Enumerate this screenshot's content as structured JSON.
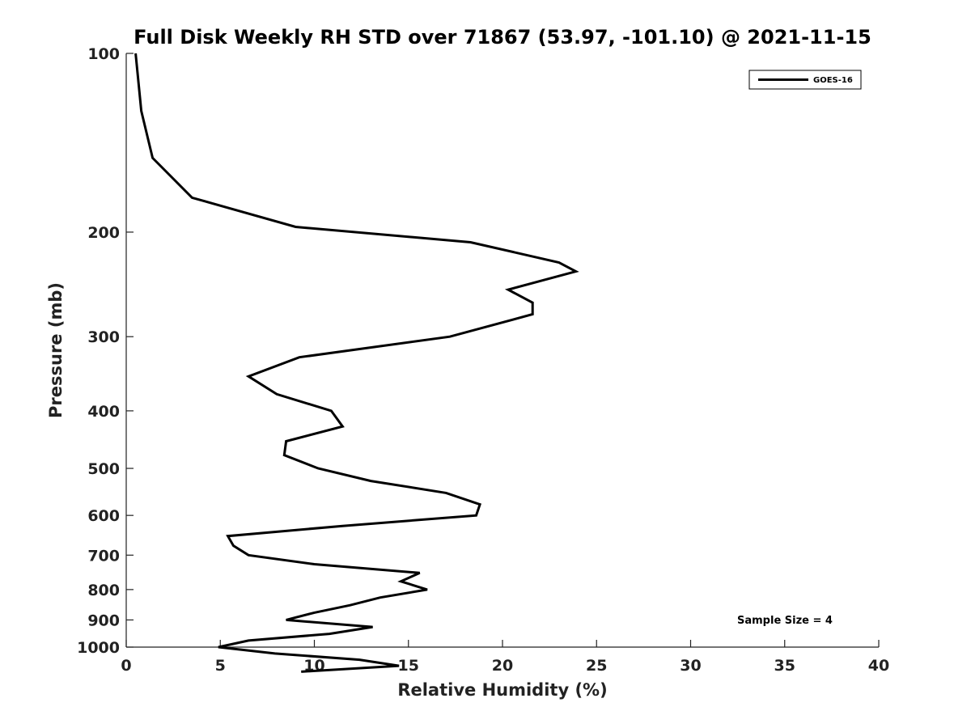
{
  "chart_data": {
    "type": "line",
    "title": "Full Disk Weekly RH STD over 71867 (53.97, -101.10) @ 2021-11-15",
    "xlabel": "Relative Humidity (%)",
    "ylabel": "Pressure (mb)",
    "xlim": [
      0,
      40
    ],
    "ylim": [
      100,
      1000
    ],
    "y_scale": "log",
    "y_reversed": true,
    "grid": false,
    "legend_position": "top-right",
    "x_ticks": [
      "0",
      "5",
      "10",
      "15",
      "20",
      "25",
      "30",
      "35",
      "40"
    ],
    "x_tick_values": [
      0,
      5,
      10,
      15,
      20,
      25,
      30,
      35,
      40
    ],
    "y_ticks": [
      "100",
      "200",
      "300",
      "400",
      "500",
      "600",
      "700",
      "800",
      "900",
      "1000"
    ],
    "y_tick_values": [
      100,
      200,
      300,
      400,
      500,
      600,
      700,
      800,
      900,
      1000
    ],
    "annotation": "Sample Size = 4",
    "series": [
      {
        "name": "GOES-16",
        "color": "#000000",
        "points": [
          [
            0.5,
            100
          ],
          [
            0.8,
            125
          ],
          [
            1.4,
            150
          ],
          [
            3.5,
            175
          ],
          [
            9.0,
            196
          ],
          [
            18.3,
            208
          ],
          [
            23.0,
            225
          ],
          [
            23.9,
            233
          ],
          [
            20.3,
            250
          ],
          [
            21.6,
            263
          ],
          [
            21.6,
            275
          ],
          [
            17.2,
            300
          ],
          [
            9.2,
            325
          ],
          [
            6.5,
            350
          ],
          [
            8.0,
            375
          ],
          [
            10.9,
            400
          ],
          [
            11.5,
            425
          ],
          [
            8.5,
            450
          ],
          [
            8.4,
            475
          ],
          [
            10.2,
            500
          ],
          [
            13.0,
            525
          ],
          [
            17.0,
            550
          ],
          [
            18.8,
            575
          ],
          [
            18.6,
            600
          ],
          [
            11.5,
            625
          ],
          [
            5.4,
            650
          ],
          [
            5.7,
            675
          ],
          [
            6.5,
            700
          ],
          [
            10.0,
            725
          ],
          [
            15.6,
            750
          ],
          [
            14.6,
            775
          ],
          [
            16.0,
            800
          ],
          [
            13.5,
            825
          ],
          [
            11.9,
            850
          ],
          [
            10.0,
            875
          ],
          [
            8.5,
            900
          ],
          [
            13.1,
            925
          ],
          [
            10.8,
            950
          ],
          [
            6.5,
            975
          ],
          [
            4.9,
            1000
          ],
          [
            7.9,
            1025
          ],
          [
            12.4,
            1050
          ],
          [
            14.5,
            1075
          ],
          [
            9.3,
            1100
          ]
        ]
      }
    ]
  }
}
